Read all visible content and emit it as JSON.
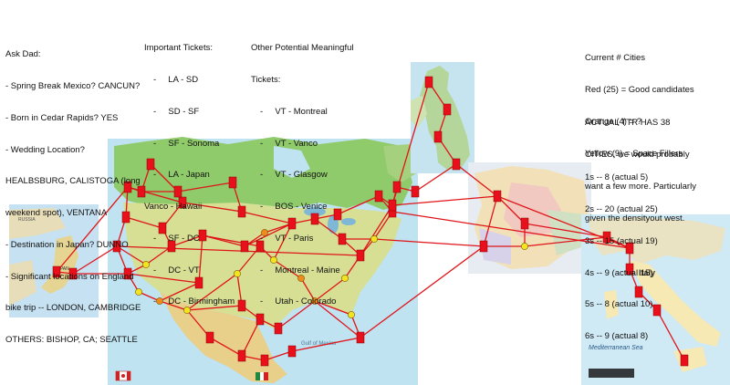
{
  "notes": {
    "ask_dad": {
      "title": "Ask Dad:",
      "items": [
        "- Spring Break Mexico? CANCUN?",
        "- Born in Cedar Rapids? YES",
        "- Wedding Location?",
        "HEALBSBURG, CALISTOGA (long",
        "weekend spot), VENTANA",
        "- Destination in Japan? DUNNO",
        "- Significant locations on England",
        "bike trip -- LONDON, CAMBRIDGE",
        "OTHERS: BISHOP, CA; SEATTLE"
      ]
    },
    "important_tickets": {
      "title": "Important Tickets:",
      "items": [
        "-     LA - SD",
        "-     SD - SF",
        "-     SF - Sonoma",
        "-     LA - Japan",
        "Vanco - Hawaii",
        "-     SF - DC",
        "-     DC - VT",
        "-     DC - Birmingham"
      ]
    },
    "other_tickets": {
      "title": "Other Potential Meaningful",
      "title2": "Tickets:",
      "items": [
        "-     VT - Montreal",
        "-     VT - Vanco",
        "-     VT - Glasgow",
        "-     BOS - Venice",
        "-     VT - Paris",
        "-     Montreal - Maine",
        "-     Utah - Colorado"
      ]
    },
    "current_cities": {
      "title": "Current # Cities",
      "lines": [
        "Red (25) = Good candidates",
        "Orange (4) = ?",
        "Yellow (9) = Space Fillers"
      ]
    },
    "actual_ttr": {
      "lines": [
        "ACTUAL TTR HAS 38",
        "CITIES, we would probably",
        "want a few more. Particularly",
        "given the densityout west."
      ]
    },
    "counts": {
      "lines": [
        "1s -- 8 (actual 5)",
        "2s -- 20 (actual 25)",
        "3s -- 15 (actual 19)",
        "4s -- 9 (actual 15)",
        "5s -- 8 (actual 10)",
        "6s -- 9 (actual 8)"
      ]
    }
  },
  "map_labels": {
    "japan": "JAPAN",
    "russia": "RUSSIA",
    "italy": "Italy",
    "mediterranean": "Mediterranean Sea",
    "gulf": "Gulf of Mexico"
  },
  "colors": {
    "route": "#e0141a",
    "city_red": "#e8101a",
    "city_orange": "#f08a1a",
    "city_yellow": "#f2e41e",
    "canada_green": "#8fca6b",
    "usa_land": "#c9d98a",
    "ocean": "#bfe3f0"
  }
}
